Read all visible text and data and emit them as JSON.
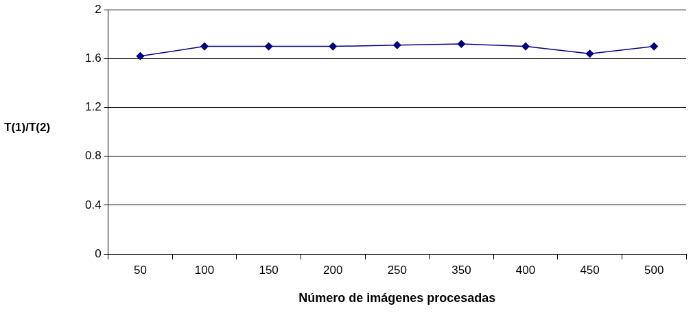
{
  "chart_data": {
    "type": "line",
    "xlabel": "Número de imágenes procesadas",
    "ylabel": "T(1)/T(2)",
    "categories": [
      "50",
      "100",
      "150",
      "200",
      "250",
      "350",
      "400",
      "450",
      "500"
    ],
    "series": [
      {
        "color": "#000080",
        "values": [
          1.62,
          1.7,
          1.7,
          1.7,
          1.71,
          1.72,
          1.7,
          1.64,
          1.7
        ]
      }
    ],
    "ylim": [
      0,
      2
    ],
    "yticks": [
      0,
      0.4,
      0.8,
      1.2,
      1.6,
      2
    ],
    "grid": "y",
    "legend": false,
    "marker": "diamond",
    "line_style": "solid"
  }
}
